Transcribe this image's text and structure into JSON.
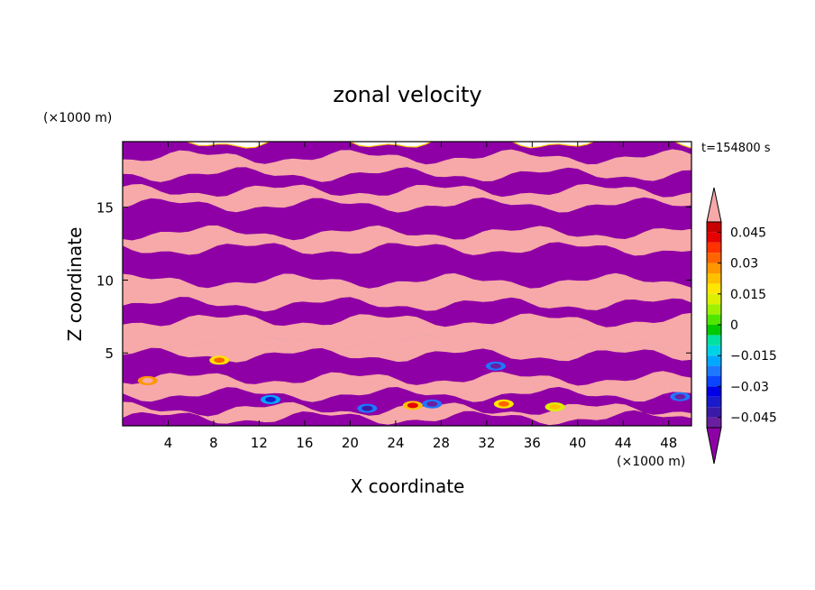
{
  "chart_data": {
    "type": "heatmap",
    "title": "zonal velocity",
    "xlabel": "X coordinate",
    "ylabel": "Z coordinate",
    "x_unit": "(×1000 m)",
    "y_unit": "(×1000 m)",
    "time_label": "t=154800 s",
    "xlim": [
      0,
      50
    ],
    "ylim": [
      0,
      19.5
    ],
    "x_ticks": [
      4,
      8,
      12,
      16,
      20,
      24,
      28,
      32,
      36,
      40,
      44,
      48
    ],
    "y_ticks": [
      5,
      10,
      15
    ],
    "colorbar": {
      "levels": [
        -0.05,
        -0.045,
        -0.04,
        -0.035,
        -0.03,
        -0.025,
        -0.02,
        -0.015,
        -0.01,
        -0.005,
        0,
        0.005,
        0.01,
        0.015,
        0.02,
        0.025,
        0.03,
        0.035,
        0.04,
        0.045,
        0.05
      ],
      "colors": [
        "#6a1fa0",
        "#3a1aa8",
        "#1a1acd",
        "#0000e6",
        "#0a46ff",
        "#1e78ff",
        "#00a8ff",
        "#00d2e6",
        "#00e0a0",
        "#00c800",
        "#50e600",
        "#a0f000",
        "#dcf000",
        "#ffe600",
        "#ffc000",
        "#ff9600",
        "#ff6400",
        "#ff3200",
        "#e60000",
        "#c80000"
      ],
      "over_color": "#f7a8a8",
      "under_color": "#8e00a6",
      "tick_labels": [
        "0.045",
        "0.03",
        "0.015",
        "0",
        "−0.015",
        "−0.03",
        "−0.045"
      ],
      "tick_values": [
        0.045,
        0.03,
        0.015,
        0,
        -0.015,
        -0.03,
        -0.045
      ],
      "extend": "both"
    },
    "bands": [
      {
        "z0": 0.0,
        "z1": 0.6,
        "sign": "neg"
      },
      {
        "z0": 0.6,
        "z1": 1.2,
        "sign": "pos"
      },
      {
        "z0": 1.2,
        "z1": 2.2,
        "sign": "neg"
      },
      {
        "z0": 2.2,
        "z1": 3.3,
        "sign": "pos"
      },
      {
        "z0": 3.3,
        "z1": 4.9,
        "sign": "neg"
      },
      {
        "z0": 4.9,
        "z1": 5.8,
        "sign": "pos"
      },
      {
        "z0": 5.8,
        "z1": 7.3,
        "sign": "pos"
      },
      {
        "z0": 7.3,
        "z1": 8.4,
        "sign": "neg"
      },
      {
        "z0": 8.4,
        "z1": 10.0,
        "sign": "pos"
      },
      {
        "z0": 10.0,
        "z1": 12.2,
        "sign": "neg"
      },
      {
        "z0": 12.2,
        "z1": 13.3,
        "sign": "pos"
      },
      {
        "z0": 13.3,
        "z1": 15.2,
        "sign": "neg"
      },
      {
        "z0": 15.2,
        "z1": 16.2,
        "sign": "pos"
      },
      {
        "z0": 16.2,
        "z1": 17.3,
        "sign": "neg"
      },
      {
        "z0": 17.3,
        "z1": 18.5,
        "sign": "pos"
      },
      {
        "z0": 18.5,
        "z1": 19.5,
        "sign": "neg"
      }
    ],
    "extremes": [
      {
        "x": 2.2,
        "z": 3.1,
        "value": 0.05
      },
      {
        "x": 8.5,
        "z": 4.5,
        "value": 0.03
      },
      {
        "x": 13.0,
        "z": 1.8,
        "value": -0.04
      },
      {
        "x": 21.5,
        "z": 1.2,
        "value": -0.045
      },
      {
        "x": 25.5,
        "z": 1.4,
        "value": 0.04
      },
      {
        "x": 27.2,
        "z": 1.5,
        "value": -0.05
      },
      {
        "x": 32.8,
        "z": 4.1,
        "value": -0.05
      },
      {
        "x": 33.5,
        "z": 1.5,
        "value": 0.03
      },
      {
        "x": 38.0,
        "z": 1.3,
        "value": 0.02
      },
      {
        "x": 49.0,
        "z": 2.0,
        "value": -0.05
      }
    ]
  }
}
